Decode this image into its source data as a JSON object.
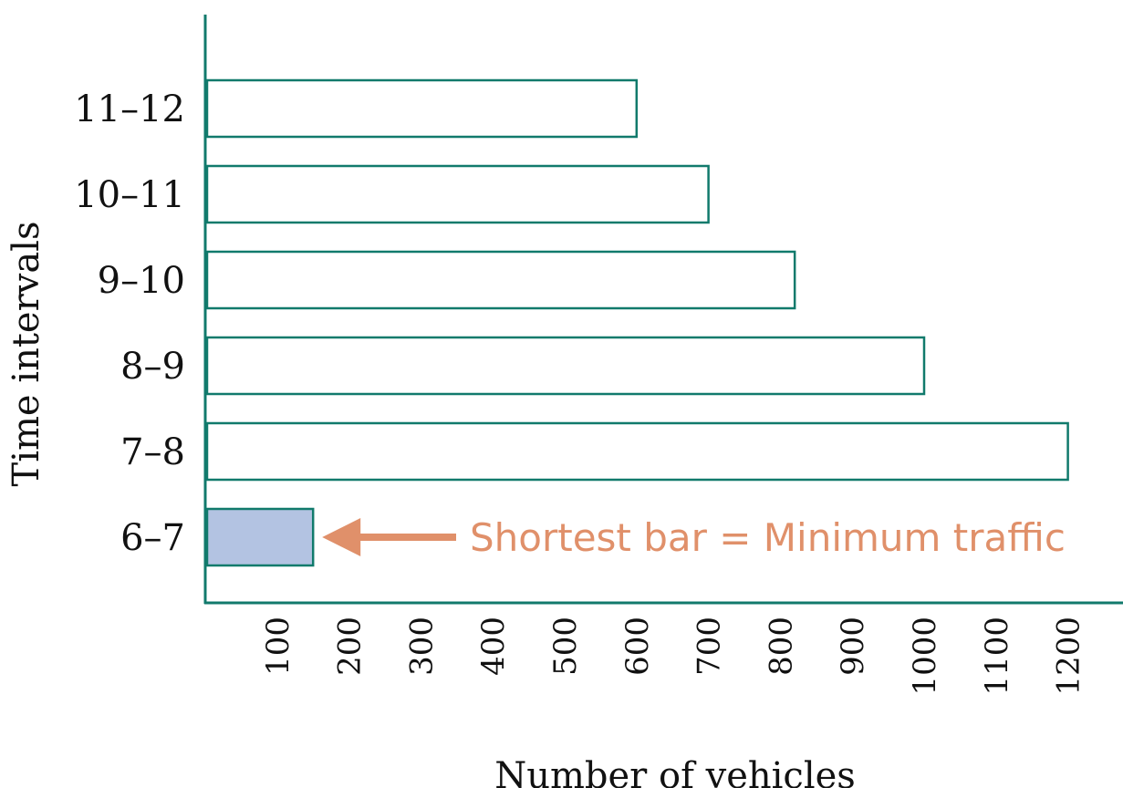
{
  "chart_data": {
    "type": "bar",
    "orientation": "horizontal",
    "categories": [
      "6–7",
      "7–8",
      "8–9",
      "9–10",
      "10–11",
      "11–12"
    ],
    "values": [
      150,
      1200,
      1000,
      820,
      700,
      600
    ],
    "xlabel": "Number of vehicles",
    "ylabel": "Time intervals",
    "x_ticks": [
      "100",
      "200",
      "300",
      "400",
      "500",
      "600",
      "700",
      "800",
      "900",
      "1000",
      "1100",
      "1200"
    ],
    "xlim": [
      0,
      1200
    ],
    "grid": false,
    "highlight_category": "6–7",
    "annotation": {
      "text": "Shortest bar = Minimum traffic",
      "target_category": "6–7"
    },
    "colors": {
      "axis": "#117a6c",
      "bar_stroke": "#117a6c",
      "bar_fill": "#ffffff",
      "highlight_fill": "#b3c3e2",
      "annotation": "#e0906a"
    }
  }
}
